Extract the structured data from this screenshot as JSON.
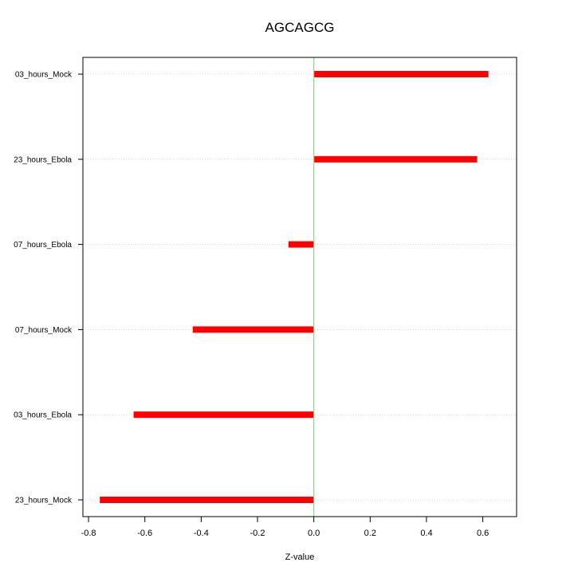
{
  "chart_data": {
    "type": "bar",
    "orientation": "horizontal",
    "title": "AGCAGCG",
    "xlabel": "Z-value",
    "ylabel": "",
    "xlim": [
      -0.82,
      0.72
    ],
    "x_ticks": [
      -0.8,
      -0.6,
      -0.4,
      -0.2,
      0.0,
      0.2,
      0.4,
      0.6
    ],
    "x_tick_labels": [
      "-0.8",
      "-0.6",
      "-0.4",
      "-0.2",
      "0.0",
      "0.2",
      "0.4",
      "0.6"
    ],
    "categories": [
      "03_hours_Mock",
      "23_hours_Ebola",
      "07_hours_Ebola",
      "07_hours_Mock",
      "03_hours_Ebola",
      "23_hours_Mock"
    ],
    "values": [
      0.62,
      0.58,
      -0.09,
      -0.43,
      -0.64,
      -0.76
    ],
    "bar_color": "#ff0000",
    "zero_line_color": "#66ee66",
    "grid_color": "#cccccc",
    "grid": "horizontal dotted at each category",
    "legend": "none"
  }
}
